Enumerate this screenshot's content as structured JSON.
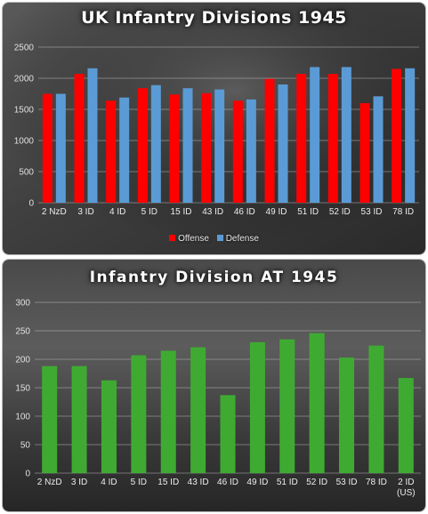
{
  "chart_data": [
    {
      "type": "bar",
      "title": "UK Infantry Divisions 1945",
      "categories": [
        "2 NzD",
        "3 ID",
        "4 ID",
        "5 ID",
        "15 ID",
        "43 ID",
        "46 ID",
        "49 ID",
        "51 ID",
        "52 ID",
        "53 ID",
        "78 ID"
      ],
      "series": [
        {
          "name": "Offense",
          "color": "#ff0000",
          "values": [
            1750,
            2070,
            1640,
            1840,
            1740,
            1760,
            1640,
            1990,
            2070,
            2070,
            1600,
            2150
          ]
        },
        {
          "name": "Defense",
          "color": "#5b9bd5",
          "values": [
            1750,
            2160,
            1690,
            1890,
            1840,
            1820,
            1660,
            1900,
            2180,
            2180,
            1710,
            2160
          ]
        }
      ],
      "ylim": [
        0,
        2500
      ],
      "yticks": [
        0,
        500,
        1000,
        1500,
        2000,
        2500
      ],
      "xlabel": "",
      "ylabel": "",
      "grid": true,
      "legend": "bottom"
    },
    {
      "type": "bar",
      "title": "Infantry Division AT 1945",
      "categories": [
        "2 NzD",
        "3 ID",
        "4 ID",
        "5 ID",
        "15 ID",
        "43 ID",
        "46 ID",
        "49 ID",
        "51 ID",
        "52 ID",
        "53 ID",
        "78 ID",
        "2 ID (US)"
      ],
      "series": [
        {
          "name": "",
          "color": "#3faa32",
          "values": [
            188,
            188,
            163,
            207,
            215,
            221,
            137,
            230,
            235,
            246,
            203,
            224,
            167
          ]
        }
      ],
      "ylim": [
        0,
        300
      ],
      "yticks": [
        0,
        50,
        100,
        150,
        200,
        250,
        300
      ],
      "xlabel": "",
      "ylabel": "",
      "grid": true,
      "legend": "none"
    }
  ]
}
